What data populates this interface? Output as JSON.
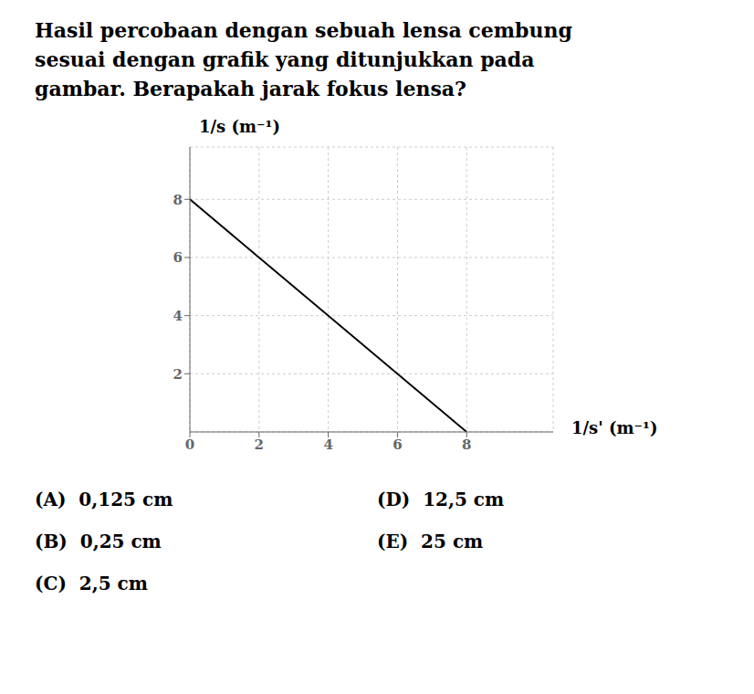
{
  "chart_data": {
    "type": "line",
    "title": [
      "Hasil percobaan dengan sebuah lensa cembung",
      "sesuai dengan grafik yang ditunjukkan pada",
      "gambar. Berapakah jarak fokus lensa?"
    ],
    "x_label": "1/s' (m⁻¹)",
    "y_label": "1/s (m⁻¹)",
    "x": [
      0,
      8
    ],
    "series": [
      {
        "name": "1/s",
        "color": "#000000",
        "values": [
          8,
          0
        ]
      }
    ],
    "xlim": [
      0,
      10.5
    ],
    "ylim": [
      0,
      9.8
    ],
    "xticks": [
      0,
      2,
      4,
      6,
      8
    ],
    "yticks": [
      2,
      4,
      6,
      8
    ],
    "grid": true,
    "annotations": [
      "(A)  0,125 cm",
      "(D)  12,5 cm",
      "(B)  0,25 cm",
      "(E)  25 cm",
      "(C)  2,5 cm"
    ]
  }
}
